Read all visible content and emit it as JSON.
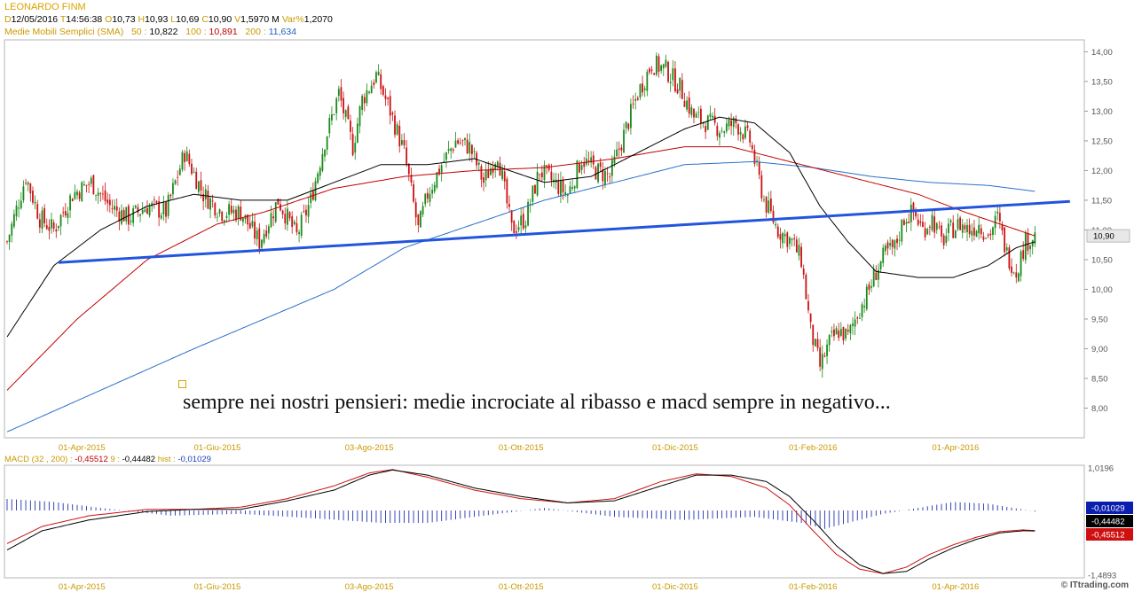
{
  "header": {
    "title": "LEONARDO FINM",
    "ohlc": [
      {
        "label": "D",
        "value": "12/05/2016"
      },
      {
        "label": "T",
        "value": "14:56:38"
      },
      {
        "label": "O",
        "value": "10,73"
      },
      {
        "label": "H",
        "value": "10,93"
      },
      {
        "label": "L",
        "value": "10,69"
      },
      {
        "label": "C",
        "value": "10,90"
      },
      {
        "label": "V",
        "value": "1,5970 M"
      },
      {
        "label": "Var%",
        "value": "1,2070"
      }
    ],
    "sma": {
      "name": "Medie Mobili Semplici (SMA)",
      "items": [
        {
          "period": "50 :",
          "value": "10,822",
          "color": "#000000"
        },
        {
          "period": "100 :",
          "value": "10,891",
          "color": "#c00000"
        },
        {
          "period": "200 :",
          "value": "11,634",
          "color": "#1f5fbf"
        }
      ]
    }
  },
  "macd_header": {
    "name": "MACD",
    "params": "(32 , 200) :",
    "macd_value": "-0,45512",
    "signal_label": "9 :",
    "signal_value": "-0,44482",
    "hist_label": "hist :",
    "hist_value": "-0,01029"
  },
  "annotation": "sempre nei nostri pensieri: medie incrociate al ribasso e macd sempre in negativo...",
  "watermark": "© ITtrading.com",
  "colors": {
    "sma50": "#000000",
    "sma100": "#c00000",
    "sma200": "#2a6fc9",
    "trendline": "#2255dd",
    "bull": "#1a8a1a",
    "bear": "#cc1111",
    "macd": "#000000",
    "signal": "#cc1111",
    "hist": "#2233aa"
  },
  "chart_data": [
    {
      "type": "candlestick",
      "ylim": [
        7.5,
        14.2
      ],
      "y_ticks": [
        "14,00",
        "13,50",
        "13,00",
        "12,50",
        "12,00",
        "11,50",
        "11,00",
        "10,50",
        "10,00",
        "9,50",
        "9,00",
        "8,50",
        "8,00"
      ],
      "y_tick_values": [
        14.0,
        13.5,
        13.0,
        12.5,
        12.0,
        11.5,
        11.0,
        10.5,
        10.0,
        9.5,
        9.0,
        8.5,
        8.0
      ],
      "last_price_label": "10,90",
      "last_price": 10.9,
      "x_tick_labels": [
        "01-Apr-2015",
        "01-Giu-2015",
        "03-Ago-2015",
        "01-Ott-2015",
        "01-Dic-2015",
        "01-Feb-2016",
        "01-Apr-2016"
      ],
      "x_tick_index": [
        32,
        90,
        155,
        220,
        286,
        345,
        406
      ],
      "price_path": [
        [
          0,
          10.8
        ],
        [
          8,
          11.9
        ],
        [
          14,
          11.2
        ],
        [
          20,
          11.0
        ],
        [
          28,
          11.6
        ],
        [
          36,
          11.8
        ],
        [
          44,
          11.4
        ],
        [
          52,
          11.2
        ],
        [
          60,
          11.4
        ],
        [
          68,
          11.3
        ],
        [
          76,
          12.3
        ],
        [
          84,
          11.6
        ],
        [
          92,
          11.3
        ],
        [
          100,
          11.3
        ],
        [
          108,
          10.8
        ],
        [
          116,
          11.5
        ],
        [
          124,
          10.9
        ],
        [
          130,
          11.5
        ],
        [
          136,
          12.5
        ],
        [
          142,
          13.3
        ],
        [
          148,
          12.4
        ],
        [
          152,
          13.2
        ],
        [
          158,
          13.6
        ],
        [
          164,
          13.0
        ],
        [
          170,
          12.3
        ],
        [
          176,
          11.0
        ],
        [
          180,
          11.6
        ],
        [
          186,
          12.1
        ],
        [
          192,
          12.5
        ],
        [
          198,
          12.4
        ],
        [
          204,
          11.8
        ],
        [
          210,
          12.3
        ],
        [
          216,
          11.0
        ],
        [
          222,
          11.2
        ],
        [
          228,
          12.0
        ],
        [
          234,
          11.8
        ],
        [
          240,
          11.6
        ],
        [
          246,
          12.2
        ],
        [
          252,
          12.0
        ],
        [
          258,
          11.9
        ],
        [
          264,
          12.6
        ],
        [
          270,
          13.3
        ],
        [
          276,
          13.8
        ],
        [
          282,
          13.7
        ],
        [
          288,
          13.4
        ],
        [
          294,
          12.9
        ],
        [
          300,
          12.8
        ],
        [
          306,
          12.7
        ],
        [
          312,
          12.8
        ],
        [
          318,
          12.5
        ],
        [
          324,
          11.5
        ],
        [
          330,
          11.0
        ],
        [
          336,
          10.8
        ],
        [
          340,
          10.5
        ],
        [
          344,
          9.3
        ],
        [
          348,
          8.7
        ],
        [
          352,
          9.1
        ],
        [
          356,
          9.3
        ],
        [
          360,
          9.2
        ],
        [
          364,
          9.6
        ],
        [
          368,
          9.9
        ],
        [
          372,
          10.3
        ],
        [
          376,
          10.6
        ],
        [
          380,
          10.7
        ],
        [
          384,
          11.2
        ],
        [
          388,
          11.3
        ],
        [
          392,
          11.0
        ],
        [
          396,
          11.2
        ],
        [
          400,
          10.8
        ],
        [
          404,
          11.0
        ],
        [
          408,
          11.1
        ],
        [
          412,
          11.0
        ],
        [
          416,
          11.1
        ],
        [
          420,
          10.9
        ],
        [
          424,
          11.2
        ],
        [
          428,
          10.6
        ],
        [
          432,
          10.3
        ],
        [
          436,
          10.8
        ],
        [
          440,
          10.9
        ]
      ],
      "sma50_path": [
        [
          0,
          9.2
        ],
        [
          20,
          10.4
        ],
        [
          40,
          11.0
        ],
        [
          60,
          11.4
        ],
        [
          80,
          11.6
        ],
        [
          100,
          11.5
        ],
        [
          120,
          11.5
        ],
        [
          140,
          11.8
        ],
        [
          160,
          12.1
        ],
        [
          180,
          12.1
        ],
        [
          200,
          12.2
        ],
        [
          215,
          12.0
        ],
        [
          230,
          11.8
        ],
        [
          250,
          11.9
        ],
        [
          270,
          12.3
        ],
        [
          290,
          12.7
        ],
        [
          305,
          12.9
        ],
        [
          320,
          12.8
        ],
        [
          335,
          12.3
        ],
        [
          348,
          11.4
        ],
        [
          360,
          10.8
        ],
        [
          372,
          10.3
        ],
        [
          390,
          10.2
        ],
        [
          405,
          10.2
        ],
        [
          420,
          10.4
        ],
        [
          432,
          10.7
        ],
        [
          440,
          10.8
        ]
      ],
      "sma100_path": [
        [
          0,
          8.3
        ],
        [
          30,
          9.5
        ],
        [
          60,
          10.5
        ],
        [
          90,
          11.1
        ],
        [
          110,
          11.3
        ],
        [
          140,
          11.7
        ],
        [
          170,
          11.9
        ],
        [
          200,
          12.0
        ],
        [
          230,
          12.05
        ],
        [
          260,
          12.2
        ],
        [
          290,
          12.4
        ],
        [
          310,
          12.4
        ],
        [
          330,
          12.2
        ],
        [
          350,
          12.0
        ],
        [
          370,
          11.8
        ],
        [
          390,
          11.6
        ],
        [
          410,
          11.3
        ],
        [
          425,
          11.1
        ],
        [
          440,
          10.9
        ]
      ],
      "sma200_path": [
        [
          0,
          7.6
        ],
        [
          40,
          8.3
        ],
        [
          80,
          9.0
        ],
        [
          110,
          9.5
        ],
        [
          140,
          10.0
        ],
        [
          170,
          10.7
        ],
        [
          200,
          11.1
        ],
        [
          230,
          11.5
        ],
        [
          260,
          11.8
        ],
        [
          290,
          12.1
        ],
        [
          320,
          12.15
        ],
        [
          345,
          12.05
        ],
        [
          370,
          11.9
        ],
        [
          395,
          11.8
        ],
        [
          420,
          11.75
        ],
        [
          440,
          11.65
        ]
      ],
      "trendline": [
        [
          22,
          10.45
        ],
        [
          455,
          11.48
        ]
      ]
    },
    {
      "type": "macd",
      "y_ticks": [
        "1,0196",
        "-1,4893"
      ],
      "y_tick_values": [
        1.0196,
        -1.4893
      ],
      "ylim": [
        -1.55,
        1.08
      ],
      "value_labels": [
        {
          "text": "-0,01029",
          "value": -0.01029,
          "bg": "#0a1fb0"
        },
        {
          "text": "-0,44482",
          "value": -0.44482,
          "bg": "#000000"
        },
        {
          "text": "-0,45512",
          "value": -0.45512,
          "bg": "#d01010"
        }
      ],
      "x_tick_labels": [
        "01-Apr-2015",
        "01-Giu-2015",
        "03-Ago-2015",
        "01-Ott-2015",
        "01-Dic-2015",
        "01-Feb-2016",
        "01-Apr-2016"
      ],
      "macd_path": [
        [
          0,
          -0.9
        ],
        [
          15,
          -0.45
        ],
        [
          35,
          -0.2
        ],
        [
          60,
          0.0
        ],
        [
          80,
          0.05
        ],
        [
          100,
          0.05
        ],
        [
          120,
          0.25
        ],
        [
          140,
          0.5
        ],
        [
          155,
          0.85
        ],
        [
          165,
          0.97
        ],
        [
          180,
          0.85
        ],
        [
          200,
          0.55
        ],
        [
          220,
          0.35
        ],
        [
          240,
          0.2
        ],
        [
          260,
          0.25
        ],
        [
          280,
          0.6
        ],
        [
          295,
          0.85
        ],
        [
          310,
          0.85
        ],
        [
          325,
          0.7
        ],
        [
          335,
          0.35
        ],
        [
          345,
          -0.2
        ],
        [
          355,
          -0.8
        ],
        [
          365,
          -1.25
        ],
        [
          375,
          -1.45
        ],
        [
          385,
          -1.4
        ],
        [
          395,
          -1.1
        ],
        [
          405,
          -0.85
        ],
        [
          415,
          -0.65
        ],
        [
          425,
          -0.5
        ],
        [
          435,
          -0.45
        ],
        [
          440,
          -0.455
        ]
      ],
      "signal_path": [
        [
          0,
          -0.75
        ],
        [
          15,
          -0.35
        ],
        [
          35,
          -0.1
        ],
        [
          60,
          0.05
        ],
        [
          80,
          0.05
        ],
        [
          100,
          0.1
        ],
        [
          120,
          0.3
        ],
        [
          140,
          0.6
        ],
        [
          155,
          0.9
        ],
        [
          165,
          0.98
        ],
        [
          180,
          0.8
        ],
        [
          200,
          0.5
        ],
        [
          220,
          0.3
        ],
        [
          240,
          0.2
        ],
        [
          260,
          0.3
        ],
        [
          280,
          0.7
        ],
        [
          295,
          0.88
        ],
        [
          310,
          0.82
        ],
        [
          325,
          0.55
        ],
        [
          335,
          0.15
        ],
        [
          345,
          -0.45
        ],
        [
          355,
          -1.0
        ],
        [
          365,
          -1.35
        ],
        [
          375,
          -1.45
        ],
        [
          385,
          -1.3
        ],
        [
          395,
          -1.0
        ],
        [
          405,
          -0.78
        ],
        [
          415,
          -0.6
        ],
        [
          425,
          -0.47
        ],
        [
          435,
          -0.43
        ],
        [
          440,
          -0.445
        ]
      ],
      "hist_path": [
        [
          0,
          0.2
        ],
        [
          20,
          0.15
        ],
        [
          40,
          0.05
        ],
        [
          70,
          -0.08
        ],
        [
          100,
          -0.05
        ],
        [
          130,
          -0.12
        ],
        [
          160,
          -0.2
        ],
        [
          180,
          -0.2
        ],
        [
          200,
          -0.1
        ],
        [
          230,
          0.05
        ],
        [
          260,
          -0.1
        ],
        [
          290,
          -0.15
        ],
        [
          320,
          -0.1
        ],
        [
          340,
          -0.2
        ],
        [
          350,
          -0.3
        ],
        [
          360,
          -0.2
        ],
        [
          375,
          -0.05
        ],
        [
          390,
          0.05
        ],
        [
          405,
          0.15
        ],
        [
          420,
          0.12
        ],
        [
          440,
          -0.01
        ]
      ]
    }
  ]
}
